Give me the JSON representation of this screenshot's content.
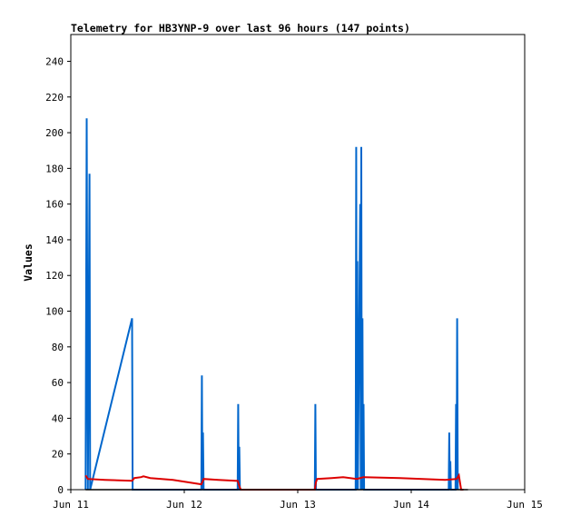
{
  "chart_data": {
    "type": "line",
    "title": "Telemetry for HB3YNP-9 over last 96 hours (147 points)",
    "xlabel": "",
    "ylabel": "Values",
    "xlim": [
      "Jun 11",
      "Jun 15"
    ],
    "ylim": [
      0,
      255
    ],
    "yticks": [
      0,
      20,
      40,
      60,
      80,
      100,
      120,
      140,
      160,
      180,
      200,
      220,
      240
    ],
    "xticks": [
      "Jun 11",
      "Jun 12",
      "Jun 13",
      "Jun 14",
      "Jun 15"
    ],
    "grid": false,
    "legend": "none",
    "series": [
      {
        "color": "#0066cc",
        "points": [
          [
            11.13,
            0
          ],
          [
            11.14,
            208
          ],
          [
            11.145,
            104
          ],
          [
            11.15,
            0
          ],
          [
            11.165,
            177
          ],
          [
            11.17,
            0
          ],
          [
            11.54,
            96
          ],
          [
            11.545,
            0
          ],
          [
            12.15,
            0
          ],
          [
            12.155,
            64
          ],
          [
            12.16,
            0
          ],
          [
            12.165,
            32
          ],
          [
            12.17,
            0
          ],
          [
            12.47,
            0
          ],
          [
            12.475,
            48
          ],
          [
            12.48,
            0
          ],
          [
            12.485,
            24
          ],
          [
            12.49,
            0
          ],
          [
            13.15,
            0
          ],
          [
            13.155,
            48
          ],
          [
            13.16,
            0
          ],
          [
            13.51,
            0
          ],
          [
            13.515,
            192
          ],
          [
            13.52,
            0
          ],
          [
            13.525,
            128
          ],
          [
            13.53,
            0
          ],
          [
            13.55,
            160
          ],
          [
            13.555,
            0
          ],
          [
            13.56,
            192
          ],
          [
            13.565,
            0
          ],
          [
            13.57,
            96
          ],
          [
            13.575,
            0
          ],
          [
            13.58,
            48
          ],
          [
            13.585,
            0
          ],
          [
            14.33,
            0
          ],
          [
            14.335,
            32
          ],
          [
            14.34,
            0
          ],
          [
            14.345,
            16
          ],
          [
            14.35,
            0
          ],
          [
            14.39,
            0
          ],
          [
            14.395,
            48
          ],
          [
            14.4,
            0
          ],
          [
            14.405,
            96
          ],
          [
            14.41,
            0
          ]
        ]
      },
      {
        "color": "#dd0000",
        "points": [
          [
            11.13,
            8
          ],
          [
            11.15,
            6
          ],
          [
            11.3,
            5.5
          ],
          [
            11.54,
            5
          ],
          [
            11.56,
            6.5
          ],
          [
            11.62,
            7
          ],
          [
            11.64,
            7.5
          ],
          [
            11.7,
            6.5
          ],
          [
            11.9,
            5.5
          ],
          [
            12.15,
            3
          ],
          [
            12.17,
            6
          ],
          [
            12.3,
            5.5
          ],
          [
            12.45,
            5
          ],
          [
            12.47,
            5
          ],
          [
            12.49,
            1
          ],
          [
            12.5,
            0
          ],
          [
            13.15,
            0
          ],
          [
            13.16,
            4
          ],
          [
            13.17,
            6
          ],
          [
            13.3,
            6.5
          ],
          [
            13.4,
            7
          ],
          [
            13.52,
            6
          ],
          [
            13.58,
            7
          ],
          [
            13.9,
            6.5
          ],
          [
            14.3,
            5.5
          ],
          [
            14.4,
            6
          ],
          [
            14.42,
            8
          ],
          [
            14.44,
            0
          ],
          [
            14.46,
            0
          ]
        ]
      },
      {
        "color": "#000000",
        "points": [
          [
            11.13,
            0
          ],
          [
            14.5,
            0
          ]
        ]
      }
    ]
  }
}
